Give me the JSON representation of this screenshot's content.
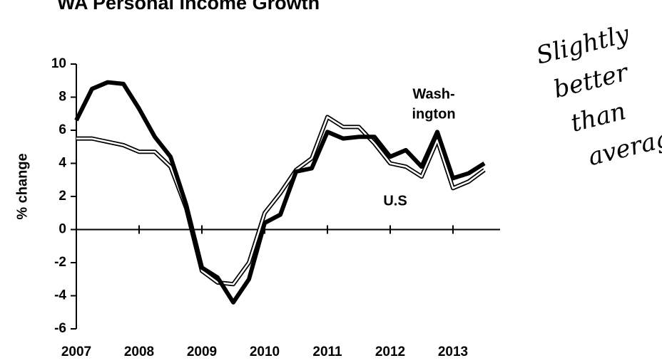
{
  "chart_data": {
    "type": "line",
    "title": "WA Personal Income Growth",
    "ylabel": "% change",
    "x": [
      2007,
      2007.25,
      2007.5,
      2007.75,
      2008,
      2008.25,
      2008.5,
      2008.75,
      2009,
      2009.25,
      2009.5,
      2009.75,
      2010,
      2010.25,
      2010.5,
      2010.75,
      2011,
      2011.25,
      2011.5,
      2011.75,
      2012,
      2012.25,
      2012.5,
      2012.75,
      2013,
      2013.25,
      2013.5
    ],
    "series": [
      {
        "label": [
          "Wash-",
          "ington"
        ],
        "color": "#000000",
        "style": "solid",
        "values": [
          6.6,
          8.5,
          8.9,
          8.8,
          7.3,
          5.6,
          4.4,
          1.5,
          -2.3,
          -2.9,
          -4.4,
          -3.0,
          0.4,
          0.9,
          3.5,
          3.7,
          5.9,
          5.5,
          5.6,
          5.6,
          4.4,
          4.8,
          3.8,
          5.9,
          3.1,
          3.4,
          4.0
        ]
      },
      {
        "label": [
          "U.S"
        ],
        "color": "#000000",
        "style": "double",
        "values": [
          5.5,
          5.5,
          5.3,
          5.1,
          4.7,
          4.7,
          3.8,
          1.3,
          -2.5,
          -3.2,
          -3.3,
          -2.0,
          1.0,
          2.2,
          3.6,
          4.3,
          6.8,
          6.2,
          6.2,
          5.2,
          4.0,
          3.8,
          3.2,
          5.4,
          2.5,
          2.9,
          3.6
        ]
      }
    ],
    "xlim": [
      2007,
      2013.75
    ],
    "xticks": [
      2007,
      2008,
      2009,
      2010,
      2011,
      2012,
      2013
    ],
    "ylim": [
      -6,
      10
    ],
    "yticks": [
      -6,
      -4,
      -2,
      0,
      2,
      4,
      6,
      8,
      10
    ],
    "note": [
      "Slightly",
      "better",
      "than",
      "average"
    ]
  }
}
